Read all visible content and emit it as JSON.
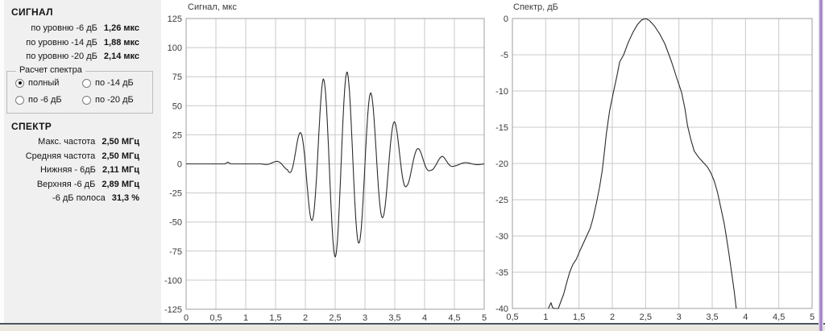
{
  "panel": {
    "signal_header": "СИГНАЛ",
    "signal_rows": [
      {
        "label": "по уровню -6 дБ",
        "value": "1,26 мкс"
      },
      {
        "label": "по уровню -14 дБ",
        "value": "1,88 мкс"
      },
      {
        "label": "по уровню -20 дБ",
        "value": "2,14 мкс"
      }
    ],
    "spectrum_calc": {
      "title": "Расчет спектра",
      "options": [
        {
          "label": "полный",
          "checked": true
        },
        {
          "label": "по -14 дБ",
          "checked": false
        },
        {
          "label": "по -6 дБ",
          "checked": false
        },
        {
          "label": "по -20 дБ",
          "checked": false
        }
      ]
    },
    "spectrum_header": "СПЕКТР",
    "spectrum_rows": [
      {
        "label": "Макс. частота",
        "value": "2,50 МГц"
      },
      {
        "label": "Средняя частота",
        "value": "2,50 МГц"
      },
      {
        "label": "Нижняя - 6дБ",
        "value": "2,11 МГц"
      },
      {
        "label": "Верхняя -6 дБ",
        "value": "2,89 МГц"
      },
      {
        "label": "-6 дБ полоса",
        "value": "31,3 %"
      }
    ]
  },
  "chart_data": [
    {
      "type": "line",
      "title": "Сигнал, мкс",
      "x_range": [
        0,
        5
      ],
      "y_range": [
        -125,
        125
      ],
      "grid": true,
      "grid_step_x": 0.5,
      "grid_step_y": 25,
      "xlabel_ticks": {
        "values": [
          0,
          0.5,
          1,
          1.5,
          2,
          2.5,
          3,
          3.5,
          4,
          4.5,
          5
        ],
        "labels": [
          "0",
          "0,5",
          "1",
          "1,5",
          "2",
          "2,5",
          "3",
          "3,5",
          "4",
          "4,5",
          "5"
        ]
      },
      "ytick_values": [
        125,
        100,
        75,
        50,
        25,
        0,
        -25,
        -50,
        -75,
        -100,
        -125
      ],
      "signal_model": {
        "description": "RF toneburst: s(t) = -A(t)*cos(2*pi*f*(t-t0)); A(t) piecewise-linear envelope",
        "carrier_freq_mhz": 2.5,
        "center_t_us": 2.5,
        "sample_step_us": 0.005,
        "envelope_points": [
          [
            0,
            0
          ],
          [
            0.65,
            0
          ],
          [
            0.7,
            1.5
          ],
          [
            0.75,
            0
          ],
          [
            1.25,
            0
          ],
          [
            1.3,
            0.3
          ],
          [
            1.5,
            2
          ],
          [
            1.7,
            5
          ],
          [
            1.9,
            26
          ],
          [
            2.1,
            48
          ],
          [
            2.3,
            73
          ],
          [
            2.5,
            80
          ],
          [
            2.7,
            79
          ],
          [
            2.9,
            68
          ],
          [
            3.1,
            61
          ],
          [
            3.3,
            46
          ],
          [
            3.5,
            36
          ],
          [
            3.7,
            19
          ],
          [
            3.9,
            13
          ],
          [
            4.1,
            5.5
          ],
          [
            4.3,
            6.5
          ],
          [
            4.5,
            1.8
          ],
          [
            4.7,
            1.0
          ],
          [
            4.9,
            0.6
          ],
          [
            5,
            0.4
          ]
        ],
        "extrema": [
          [
            1.9,
            26
          ],
          [
            2.1,
            -48
          ],
          [
            2.3,
            73
          ],
          [
            2.5,
            -80
          ],
          [
            2.7,
            79
          ],
          [
            2.9,
            -68
          ],
          [
            3.1,
            61
          ],
          [
            3.3,
            -46
          ],
          [
            3.5,
            36
          ],
          [
            3.7,
            -19
          ],
          [
            3.9,
            13
          ],
          [
            4.1,
            -5.5
          ],
          [
            4.3,
            6.5
          ]
        ]
      }
    },
    {
      "type": "line",
      "title": "Спектр, дБ",
      "x_range": [
        0.5,
        5
      ],
      "y_range": [
        -40,
        0
      ],
      "grid": true,
      "grid_step_x": 0.5,
      "grid_step_y": 5,
      "xlabel_ticks": {
        "values": [
          0.5,
          1,
          1.5,
          2,
          2.5,
          3,
          3.5,
          4,
          4.5,
          5
        ],
        "labels": [
          "0,5",
          "1",
          "1,5",
          "2",
          "2,5",
          "3",
          "3,5",
          "4",
          "4,5",
          "5"
        ]
      },
      "ytick_values": [
        0,
        -5,
        -10,
        -15,
        -20,
        -25,
        -30,
        -35,
        -40
      ],
      "points": [
        [
          1.04,
          -40
        ],
        [
          1.06,
          -39.6
        ],
        [
          1.08,
          -39.2
        ],
        [
          1.1,
          -39.8
        ],
        [
          1.12,
          -40
        ],
        [
          1.19,
          -40
        ],
        [
          1.23,
          -39
        ],
        [
          1.27,
          -38
        ],
        [
          1.31,
          -36.6
        ],
        [
          1.36,
          -35
        ],
        [
          1.41,
          -33.9
        ],
        [
          1.46,
          -33.2
        ],
        [
          1.51,
          -32.1
        ],
        [
          1.57,
          -30.9
        ],
        [
          1.62,
          -29.9
        ],
        [
          1.67,
          -28.9
        ],
        [
          1.71,
          -27.6
        ],
        [
          1.76,
          -25.5
        ],
        [
          1.81,
          -23.2
        ],
        [
          1.85,
          -20.9
        ],
        [
          1.88,
          -18.5
        ],
        [
          1.91,
          -15.9
        ],
        [
          1.96,
          -12.7
        ],
        [
          2.02,
          -10
        ],
        [
          2.07,
          -7.9
        ],
        [
          2.11,
          -6
        ],
        [
          2.17,
          -5
        ],
        [
          2.24,
          -3.3
        ],
        [
          2.31,
          -1.9
        ],
        [
          2.38,
          -0.8
        ],
        [
          2.44,
          -0.2
        ],
        [
          2.5,
          0
        ],
        [
          2.56,
          -0.3
        ],
        [
          2.63,
          -1
        ],
        [
          2.71,
          -2.1
        ],
        [
          2.79,
          -3.5
        ],
        [
          2.85,
          -5
        ],
        [
          2.89,
          -6
        ],
        [
          2.96,
          -8
        ],
        [
          3.04,
          -10.2
        ],
        [
          3.09,
          -12.4
        ],
        [
          3.13,
          -14.8
        ],
        [
          3.18,
          -16.7
        ],
        [
          3.23,
          -18.3
        ],
        [
          3.3,
          -19.2
        ],
        [
          3.37,
          -19.9
        ],
        [
          3.43,
          -20.5
        ],
        [
          3.48,
          -21.3
        ],
        [
          3.53,
          -22.4
        ],
        [
          3.58,
          -24
        ],
        [
          3.63,
          -26.1
        ],
        [
          3.68,
          -28.3
        ],
        [
          3.71,
          -30
        ],
        [
          3.75,
          -32.4
        ],
        [
          3.79,
          -35
        ],
        [
          3.83,
          -37.6
        ],
        [
          3.86,
          -40
        ]
      ]
    }
  ],
  "style": {
    "grid_color": "#c9c9c9",
    "plot_border_color": "#9f9f9f",
    "curve_color": "#2b2b2b",
    "panel_bg": "#f0f0f0",
    "window_right_border": "#9272b4",
    "window_bottom_line": "#4a5660"
  }
}
